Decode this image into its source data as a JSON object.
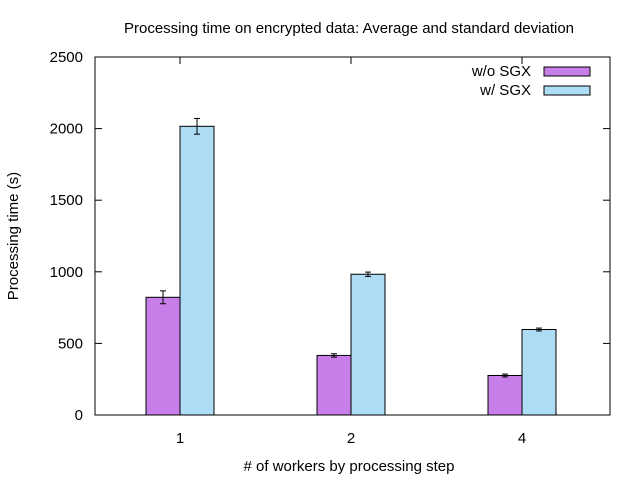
{
  "chart_data": {
    "type": "bar",
    "title": "Processing time on encrypted data: Average and standard deviation",
    "xlabel": "# of workers by processing step",
    "ylabel": "Processing time (s)",
    "categories": [
      "1",
      "2",
      "4"
    ],
    "ylim": [
      0,
      2500
    ],
    "yticks": [
      0,
      500,
      1000,
      1500,
      2000,
      2500
    ],
    "grid": false,
    "legend_position": "top-right",
    "series": [
      {
        "name": "w/o SGX",
        "color": "#c77ee8",
        "values": [
          822,
          416,
          276
        ],
        "errors": [
          45,
          12,
          10
        ]
      },
      {
        "name": "w/ SGX",
        "color": "#aedcf4",
        "values": [
          2016,
          983,
          597
        ],
        "errors": [
          55,
          15,
          10
        ]
      }
    ]
  }
}
